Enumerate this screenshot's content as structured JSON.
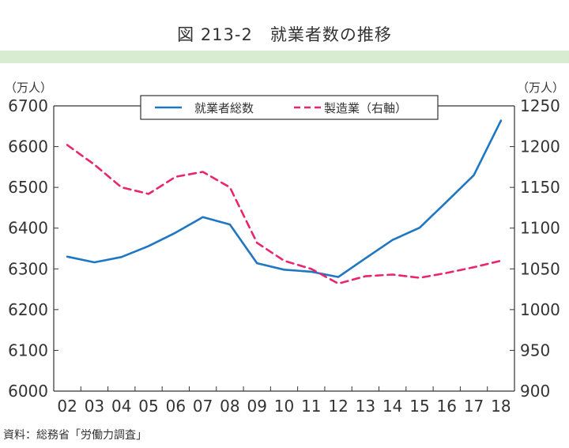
{
  "header": {
    "title": "図 213-2　就業者数の推移"
  },
  "footer": {
    "source": "資料：総務省「労働力調査」"
  },
  "colors": {
    "series1": "#1f77c4",
    "series2": "#e8266e",
    "band": "#d8ecd2",
    "axis": "#333333"
  },
  "chart_data": {
    "type": "line",
    "title": "図 213-2　就業者数の推移",
    "x": [
      "02",
      "03",
      "04",
      "05",
      "06",
      "07",
      "08",
      "09",
      "10",
      "11",
      "12",
      "13",
      "14",
      "15",
      "16",
      "17",
      "18"
    ],
    "left_axis": {
      "unit": "（万人）",
      "min": 6000,
      "max": 6700,
      "ticks": [
        6000,
        6100,
        6200,
        6300,
        6400,
        6500,
        6600,
        6700
      ]
    },
    "right_axis": {
      "unit": "（万人）",
      "min": 900,
      "max": 1250,
      "ticks": [
        900,
        950,
        1000,
        1050,
        1100,
        1150,
        1200,
        1250
      ]
    },
    "legend_position": "top-center",
    "series": [
      {
        "name": "就業者総数",
        "axis": "left",
        "style": "solid",
        "values": [
          6330,
          6316,
          6329,
          6356,
          6389,
          6427,
          6409,
          6314,
          6298,
          6293,
          6280,
          6326,
          6371,
          6401,
          6465,
          6530,
          6664
        ]
      },
      {
        "name": "製造業（右軸）",
        "axis": "right",
        "style": "dashed",
        "values": [
          1202,
          1178,
          1150,
          1142,
          1163,
          1169,
          1150,
          1082,
          1060,
          1050,
          1032,
          1041,
          1043,
          1039,
          1045,
          1052,
          1060
        ]
      }
    ]
  }
}
